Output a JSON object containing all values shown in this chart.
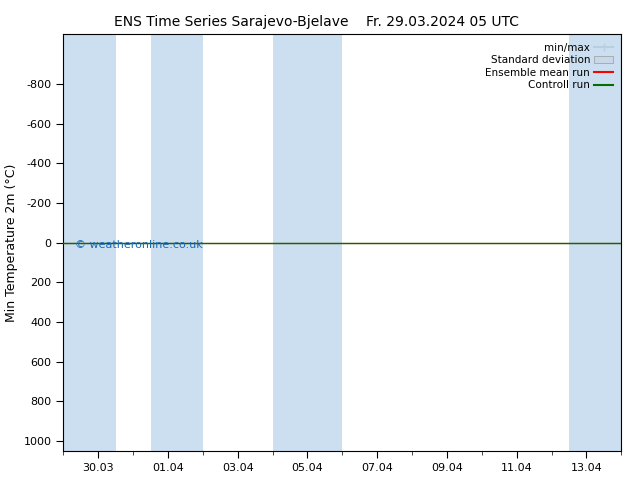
{
  "title_left": "ENS Time Series Sarajevo-Bjelave",
  "title_right": "Fr. 29.03.2024 05 UTC",
  "ylabel": "Min Temperature 2m (°C)",
  "ylim": [
    -1050,
    1050
  ],
  "yticks": [
    -800,
    -600,
    -400,
    -200,
    0,
    200,
    400,
    600,
    800,
    1000
  ],
  "x_tick_labels": [
    "30.03",
    "01.04",
    "03.04",
    "05.04",
    "07.04",
    "09.04",
    "11.04",
    "13.04"
  ],
  "x_tick_positions": [
    1,
    3,
    5,
    7,
    9,
    11,
    13,
    15
  ],
  "xlim": [
    0,
    16
  ],
  "shaded_pairs": [
    [
      0.0,
      1.5
    ],
    [
      2.5,
      4.0
    ],
    [
      6.0,
      8.0
    ],
    [
      14.5,
      16.0
    ]
  ],
  "shaded_color": "#ccdff0",
  "control_run_y": 0,
  "ensemble_mean_y": 0,
  "background_color": "#ffffff",
  "plot_bg_color": "#ffffff",
  "watermark": "© weatheronline.co.uk",
  "watermark_color": "#1a6bb5",
  "legend_items": [
    "min/max",
    "Standard deviation",
    "Ensemble mean run",
    "Controll run"
  ],
  "min_max_color": "#b8cfe0",
  "std_dev_color": "#c8d8e8",
  "ensemble_mean_color": "#ff0000",
  "control_run_color": "#007000",
  "title_fontsize": 10,
  "axis_label_fontsize": 9,
  "tick_fontsize": 8
}
